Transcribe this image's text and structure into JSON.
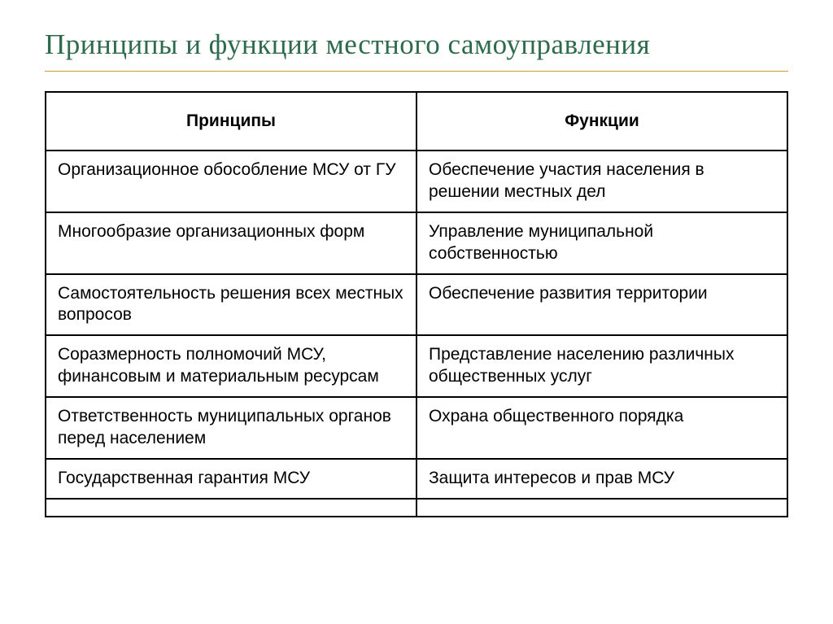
{
  "title": "Принципы  и функции местного самоуправления",
  "table": {
    "columns": [
      "Принципы",
      "Функции"
    ],
    "rows": [
      [
        "Организационное обособление МСУ от ГУ",
        "Обеспечение участия населения в решении местных дел"
      ],
      [
        "Многообразие организационных форм",
        "Управление муниципальной собственностью"
      ],
      [
        "Самостоятельность решения всех местных вопросов",
        "Обеспечение развития территории"
      ],
      [
        "Соразмерность полномочий МСУ, финансовым и материальным ресурсам",
        "Представление населению различных общественных услуг"
      ],
      [
        "Ответственность муниципальных органов перед населением",
        "Охрана общественного порядка"
      ],
      [
        "Государственная гарантия МСУ",
        "Защита интересов и прав МСУ"
      ]
    ],
    "column_widths": [
      "50%",
      "50%"
    ],
    "border_color": "#000000",
    "text_color": "#000000",
    "title_color": "#2e6b4e",
    "title_underline_color": "#c5a028",
    "header_fontsize": 21,
    "cell_fontsize": 21,
    "title_fontsize": 35
  }
}
